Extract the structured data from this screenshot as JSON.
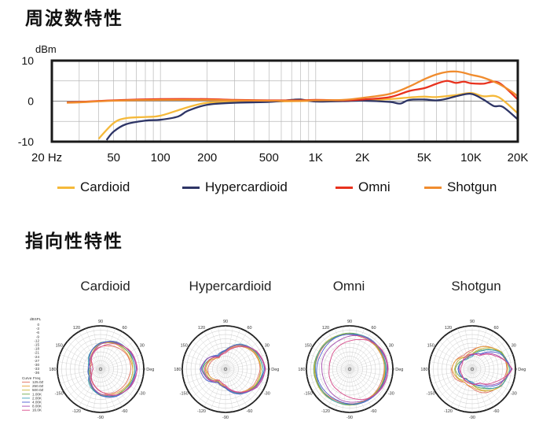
{
  "sections": {
    "frequency_title": "周波数特性",
    "polar_title": "指向性特性"
  },
  "colors": {
    "Cardioid": "#f5b93a",
    "Hypercardioid": "#2e3566",
    "Omni": "#e8321e",
    "Shotgun": "#f08c2e",
    "frame": "#1a1a1a",
    "grid": "#b9b9b9"
  },
  "chart_data": [
    {
      "type": "line",
      "xscale": "log",
      "xlim": [
        20,
        20000
      ],
      "ylim": [
        -10,
        10
      ],
      "ylabel": "dBm",
      "yticks": [
        10,
        0,
        -10
      ],
      "xticks": [
        {
          "value": 20,
          "label": "20 Hz"
        },
        {
          "value": 50,
          "label": "50"
        },
        {
          "value": 100,
          "label": "100"
        },
        {
          "value": 200,
          "label": "200"
        },
        {
          "value": 500,
          "label": "500"
        },
        {
          "value": 1000,
          "label": "1K"
        },
        {
          "value": 2000,
          "label": "2K"
        },
        {
          "value": 5000,
          "label": "5K"
        },
        {
          "value": 10000,
          "label": "10K"
        },
        {
          "value": 20000,
          "label": "20K"
        }
      ],
      "grid": true,
      "legend_position": "bottom",
      "series": [
        {
          "name": "Cardioid",
          "x": [
            40,
            50,
            60,
            80,
            100,
            150,
            200,
            300,
            500,
            800,
            1000,
            1500,
            2000,
            3000,
            4000,
            5000,
            6000,
            8000,
            10000,
            12000,
            15000,
            20000
          ],
          "y": [
            -9.3,
            -5.4,
            -4.2,
            -3.9,
            -3.6,
            -1.5,
            -0.4,
            -0.2,
            -0.1,
            0.0,
            0.1,
            0.1,
            0.2,
            0.5,
            0.9,
            1.1,
            1.0,
            1.5,
            2.0,
            1.2,
            1.0,
            -3.0
          ]
        },
        {
          "name": "Hypercardioid",
          "x": [
            45,
            50,
            60,
            80,
            100,
            130,
            150,
            200,
            300,
            500,
            700,
            800,
            1000,
            1500,
            2000,
            3000,
            3500,
            4000,
            5000,
            6000,
            7000,
            8000,
            10000,
            12000,
            14000,
            16000,
            20000
          ],
          "y": [
            -9.6,
            -7.5,
            -5.7,
            -4.8,
            -4.6,
            -3.8,
            -2.4,
            -0.9,
            -0.4,
            -0.2,
            0.3,
            0.4,
            -0.1,
            0.0,
            0.1,
            -0.2,
            -0.6,
            0.3,
            0.4,
            0.2,
            0.6,
            1.2,
            1.8,
            0.4,
            -1.2,
            -1.4,
            -4.5
          ]
        },
        {
          "name": "Omni",
          "x": [
            25,
            30,
            50,
            100,
            200,
            300,
            500,
            800,
            1000,
            1500,
            2000,
            3000,
            4000,
            5000,
            6000,
            7000,
            8000,
            9000,
            10000,
            12000,
            15000,
            20000
          ],
          "y": [
            -0.3,
            -0.2,
            0.2,
            0.5,
            0.5,
            0.3,
            0.2,
            0.2,
            0.3,
            0.2,
            0.4,
            1.0,
            2.5,
            3.2,
            4.3,
            5.0,
            4.5,
            4.8,
            4.4,
            4.3,
            4.6,
            0.4
          ]
        },
        {
          "name": "Shotgun",
          "x": [
            25,
            30,
            50,
            100,
            200,
            300,
            500,
            800,
            1000,
            1500,
            2000,
            3000,
            4000,
            5000,
            6000,
            7000,
            8000,
            9000,
            10000,
            12000,
            15000,
            18000,
            20000
          ],
          "y": [
            -0.4,
            -0.3,
            0.1,
            0.3,
            0.3,
            0.2,
            0.1,
            0.1,
            0.2,
            0.3,
            0.8,
            1.8,
            3.6,
            5.4,
            6.6,
            7.2,
            7.3,
            7.0,
            6.5,
            5.8,
            4.3,
            2.5,
            1.2
          ]
        }
      ]
    },
    {
      "type": "polar",
      "angle_labels": [
        "0 Deg",
        "30",
        "60",
        "90",
        "120",
        "150",
        "180",
        "-150",
        "-120",
        "-90",
        "-60",
        "-30"
      ],
      "scale_title": "dBSPL",
      "scale_labels": [
        "0",
        "-3",
        "-6",
        "-9",
        "-12",
        "-15",
        "-18",
        "-21",
        "-24",
        "-27",
        "-30",
        "-33",
        "-36"
      ],
      "legend_title": [
        "Curve",
        "Freq"
      ],
      "frequencies": [
        {
          "label": "125.0Z",
          "color": "#e07060"
        },
        {
          "label": "250.0Z",
          "color": "#e6a23c"
        },
        {
          "label": "500.0Z",
          "color": "#c7b43a"
        },
        {
          "label": "1.00K",
          "color": "#6aa84f"
        },
        {
          "label": "2.00K",
          "color": "#3c9fb8"
        },
        {
          "label": "4.00K",
          "color": "#4a5bd0"
        },
        {
          "label": "8.00K",
          "color": "#a64db0"
        },
        {
          "label": "16.0K",
          "color": "#d84c8c"
        }
      ],
      "patterns": [
        {
          "name": "Cardioid",
          "reach": [
            [
              0.7,
              0.68,
              0.62,
              0.52,
              0.38,
              0.24,
              0.26
            ],
            [
              0.74,
              0.72,
              0.67,
              0.57,
              0.42,
              0.26,
              0.22
            ],
            [
              0.76,
              0.74,
              0.69,
              0.59,
              0.44,
              0.28,
              0.24
            ],
            [
              0.78,
              0.76,
              0.7,
              0.6,
              0.45,
              0.3,
              0.26
            ],
            [
              0.8,
              0.78,
              0.72,
              0.61,
              0.46,
              0.31,
              0.27
            ],
            [
              0.82,
              0.79,
              0.72,
              0.6,
              0.44,
              0.3,
              0.28
            ],
            [
              0.84,
              0.8,
              0.71,
              0.57,
              0.4,
              0.27,
              0.22
            ],
            [
              0.86,
              0.8,
              0.68,
              0.52,
              0.36,
              0.22,
              0.18
            ]
          ]
        },
        {
          "name": "Hypercardioid",
          "reach": [
            [
              0.8,
              0.76,
              0.62,
              0.4,
              0.3,
              0.38,
              0.42
            ],
            [
              0.82,
              0.77,
              0.63,
              0.41,
              0.31,
              0.4,
              0.45
            ],
            [
              0.84,
              0.78,
              0.64,
              0.42,
              0.33,
              0.42,
              0.48
            ],
            [
              0.86,
              0.8,
              0.65,
              0.43,
              0.34,
              0.44,
              0.52
            ],
            [
              0.88,
              0.81,
              0.66,
              0.44,
              0.35,
              0.47,
              0.55
            ],
            [
              0.9,
              0.82,
              0.66,
              0.43,
              0.36,
              0.5,
              0.58
            ],
            [
              0.92,
              0.83,
              0.64,
              0.41,
              0.34,
              0.48,
              0.56
            ],
            [
              0.94,
              0.82,
              0.6,
              0.38,
              0.3,
              0.44,
              0.5
            ]
          ]
        },
        {
          "name": "Omni",
          "reach": [
            [
              0.8,
              0.8,
              0.8,
              0.8,
              0.8,
              0.8,
              0.8
            ],
            [
              0.81,
              0.81,
              0.81,
              0.81,
              0.81,
              0.81,
              0.81
            ],
            [
              0.82,
              0.82,
              0.82,
              0.82,
              0.82,
              0.82,
              0.82
            ],
            [
              0.83,
              0.83,
              0.83,
              0.82,
              0.82,
              0.82,
              0.82
            ],
            [
              0.84,
              0.84,
              0.83,
              0.82,
              0.81,
              0.8,
              0.8
            ],
            [
              0.86,
              0.85,
              0.83,
              0.8,
              0.78,
              0.76,
              0.76
            ],
            [
              0.88,
              0.86,
              0.82,
              0.76,
              0.7,
              0.66,
              0.64
            ],
            [
              0.9,
              0.86,
              0.78,
              0.66,
              0.56,
              0.5,
              0.48
            ]
          ]
        },
        {
          "name": "Shotgun",
          "reach": [
            [
              0.8,
              0.76,
              0.62,
              0.44,
              0.36,
              0.44,
              0.48
            ],
            [
              0.82,
              0.77,
              0.6,
              0.4,
              0.34,
              0.42,
              0.46
            ],
            [
              0.84,
              0.78,
              0.56,
              0.36,
              0.3,
              0.38,
              0.42
            ],
            [
              0.86,
              0.78,
              0.52,
              0.32,
              0.26,
              0.34,
              0.38
            ],
            [
              0.88,
              0.76,
              0.48,
              0.3,
              0.26,
              0.3,
              0.34
            ],
            [
              0.9,
              0.72,
              0.42,
              0.32,
              0.28,
              0.3,
              0.32
            ],
            [
              0.92,
              0.66,
              0.38,
              0.34,
              0.3,
              0.28,
              0.3
            ],
            [
              0.94,
              0.6,
              0.36,
              0.36,
              0.32,
              0.26,
              0.28
            ]
          ]
        }
      ]
    }
  ]
}
